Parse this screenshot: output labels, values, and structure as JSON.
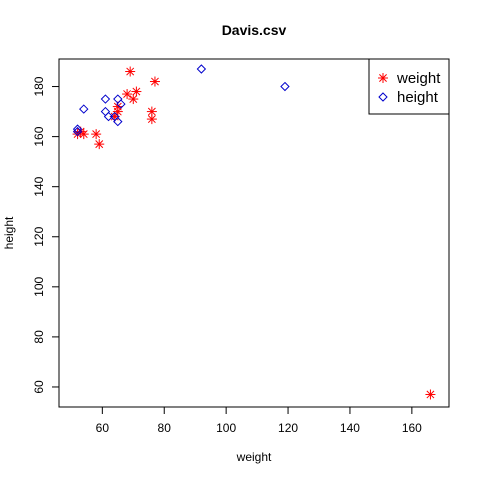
{
  "chart_data": {
    "type": "scatter",
    "title": "Davis.csv",
    "xlabel": "weight",
    "ylabel": "height",
    "xlim": [
      46,
      172
    ],
    "ylim": [
      52,
      191
    ],
    "xticks": [
      60,
      80,
      100,
      120,
      140,
      160
    ],
    "yticks": [
      60,
      80,
      100,
      120,
      140,
      160,
      180
    ],
    "legend_position": "top-right",
    "series": [
      {
        "name": "weight",
        "marker": "asterisk",
        "color": "#ff0000",
        "points": [
          [
            52,
            161
          ],
          [
            53,
            162
          ],
          [
            54,
            161
          ],
          [
            58,
            161
          ],
          [
            59,
            157
          ],
          [
            64,
            168
          ],
          [
            65,
            170
          ],
          [
            65,
            172
          ],
          [
            68,
            177
          ],
          [
            69,
            186
          ],
          [
            70,
            175
          ],
          [
            71,
            178
          ],
          [
            76,
            170
          ],
          [
            76,
            167
          ],
          [
            77,
            182
          ],
          [
            166,
            57
          ]
        ]
      },
      {
        "name": "height",
        "marker": "diamond",
        "color": "#0000cc",
        "points": [
          [
            52,
            162
          ],
          [
            52,
            163
          ],
          [
            54,
            171
          ],
          [
            61,
            175
          ],
          [
            61,
            170
          ],
          [
            62,
            168
          ],
          [
            64,
            168
          ],
          [
            65,
            175
          ],
          [
            65,
            166
          ],
          [
            66,
            173
          ],
          [
            92,
            187
          ],
          [
            119,
            180
          ]
        ]
      }
    ]
  }
}
